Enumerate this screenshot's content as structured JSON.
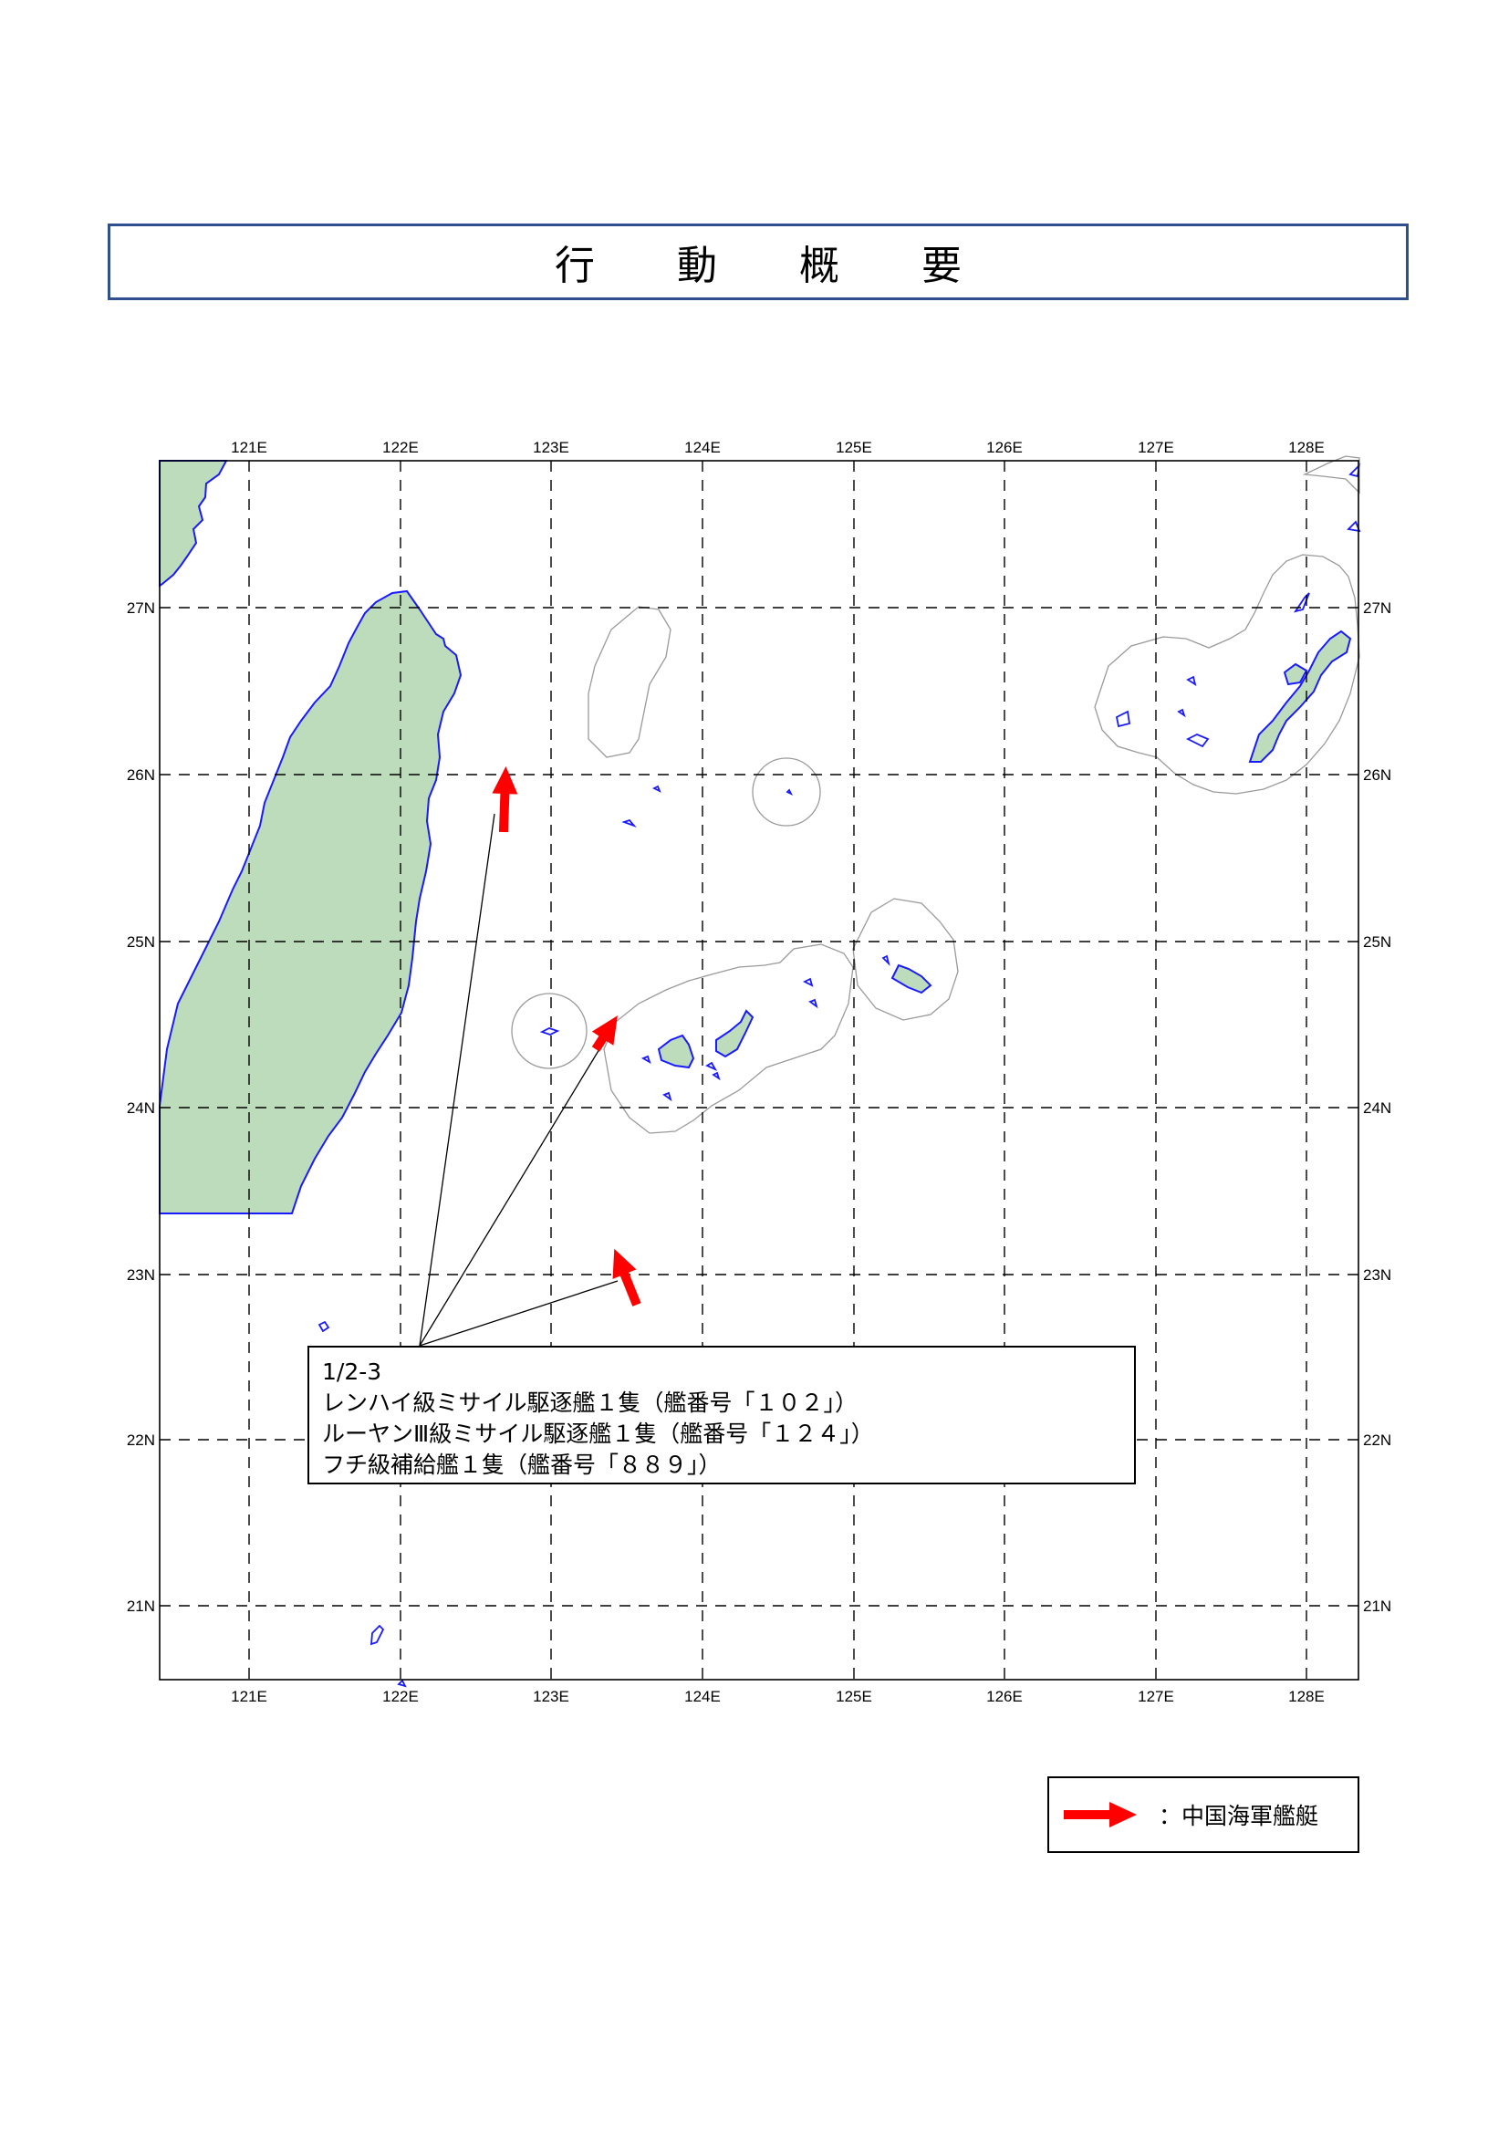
{
  "title": "行 動 概 要",
  "map": {
    "lon_labels": [
      "121E",
      "122E",
      "123E",
      "124E",
      "125E",
      "126E",
      "127E",
      "128E"
    ],
    "lat_labels": [
      "27N",
      "26N",
      "25N",
      "24N",
      "23N",
      "22N",
      "21N"
    ],
    "extent": {
      "lon": [
        120.4,
        128.35
      ],
      "lat": [
        20.5,
        27.85
      ]
    },
    "colors": {
      "land": "#bcdcbc",
      "coast": "#1a1aff",
      "zone": "#9a9a9a",
      "arrow": "#ff0000"
    }
  },
  "vessels_callout": {
    "date": "1/2-3",
    "lines": [
      "レンハイ級ミサイル駆逐艦１隻（艦番号「１０２」）",
      "ルーヤンⅢ級ミサイル駆逐艦１隻（艦番号「１２４」）",
      "フチ級補給艦１隻（艦番号「８８９」）"
    ]
  },
  "legend": {
    "icon": "red-arrow-icon",
    "label": "：中国海軍艦艇"
  }
}
